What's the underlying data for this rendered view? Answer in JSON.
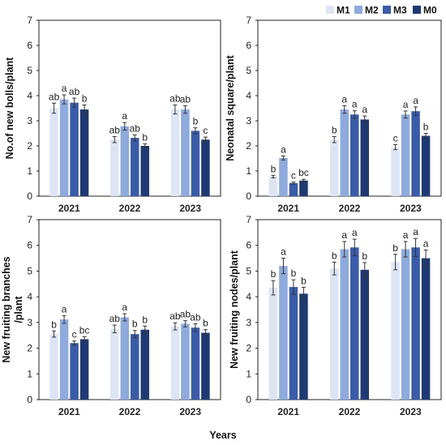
{
  "legend": [
    {
      "name": "M1",
      "color": "#dde5f4"
    },
    {
      "name": "M2",
      "color": "#8faadc"
    },
    {
      "name": "M3",
      "color": "#3a5ba8"
    },
    {
      "name": "M0",
      "color": "#1f3a73"
    }
  ],
  "x_title": "Years",
  "chart_data": [
    {
      "type": "bar",
      "ylabel": "No.of new bolls/plant",
      "ylim": [
        0,
        7
      ],
      "yticks": [
        0,
        1,
        2,
        3,
        4,
        5,
        6,
        7
      ],
      "categories": [
        "2021",
        "2022",
        "2023"
      ],
      "series": [
        {
          "name": "M1",
          "values": [
            3.5,
            2.25,
            3.45
          ],
          "errors": [
            0.2,
            0.12,
            0.18
          ],
          "labels": [
            "ab",
            "ab",
            "ab"
          ]
        },
        {
          "name": "M2",
          "values": [
            3.85,
            2.78,
            3.45
          ],
          "errors": [
            0.18,
            0.15,
            0.15
          ],
          "labels": [
            "a",
            "a",
            "ab"
          ]
        },
        {
          "name": "M3",
          "values": [
            3.72,
            2.32,
            2.6
          ],
          "errors": [
            0.18,
            0.12,
            0.12
          ],
          "labels": [
            "ab",
            "ab",
            "b"
          ]
        },
        {
          "name": "M0",
          "values": [
            3.45,
            2.0,
            2.25
          ],
          "errors": [
            0.18,
            0.08,
            0.1
          ],
          "labels": [
            "b",
            "b",
            "c"
          ]
        }
      ]
    },
    {
      "type": "bar",
      "ylabel": "Neonatal square/plant",
      "ylim": [
        0,
        7
      ],
      "yticks": [
        0,
        1,
        2,
        3,
        4,
        5,
        6,
        7
      ],
      "categories": [
        "2021",
        "2022",
        "2023"
      ],
      "series": [
        {
          "name": "M1",
          "values": [
            0.78,
            2.25,
            1.95
          ],
          "errors": [
            0.05,
            0.12,
            0.1
          ],
          "labels": [
            "b",
            "b",
            "c"
          ]
        },
        {
          "name": "M2",
          "values": [
            1.52,
            3.45,
            3.25
          ],
          "errors": [
            0.08,
            0.15,
            0.14
          ],
          "labels": [
            "a",
            "a",
            "a"
          ]
        },
        {
          "name": "M3",
          "values": [
            0.52,
            3.25,
            3.38
          ],
          "errors": [
            0.04,
            0.15,
            0.17
          ],
          "labels": [
            "c",
            "a",
            "a"
          ]
        },
        {
          "name": "M0",
          "values": [
            0.62,
            3.05,
            2.4
          ],
          "errors": [
            0.05,
            0.14,
            0.1
          ],
          "labels": [
            "bc",
            "a",
            "b"
          ]
        }
      ]
    },
    {
      "type": "bar",
      "ylabel": "New fruiting branches /plant",
      "ylabel_lines": [
        "New fruiting branches",
        "/plant"
      ],
      "ylim": [
        0,
        7
      ],
      "yticks": [
        0,
        1,
        2,
        3,
        4,
        5,
        6,
        7
      ],
      "categories": [
        "2021",
        "2022",
        "2023"
      ],
      "series": [
        {
          "name": "M1",
          "values": [
            2.55,
            2.75,
            2.85
          ],
          "errors": [
            0.12,
            0.15,
            0.14
          ],
          "labels": [
            "b",
            "ab",
            "ab"
          ]
        },
        {
          "name": "M2",
          "values": [
            3.12,
            3.2,
            2.95
          ],
          "errors": [
            0.15,
            0.14,
            0.12
          ],
          "labels": [
            "a",
            "a",
            "ab"
          ]
        },
        {
          "name": "M3",
          "values": [
            2.2,
            2.55,
            2.8
          ],
          "errors": [
            0.08,
            0.14,
            0.15
          ],
          "labels": [
            "c",
            "b",
            "ab"
          ]
        },
        {
          "name": "M0",
          "values": [
            2.35,
            2.72,
            2.6
          ],
          "errors": [
            0.1,
            0.14,
            0.12
          ],
          "labels": [
            "bc",
            "b",
            "b"
          ]
        }
      ]
    },
    {
      "type": "bar",
      "ylabel": "New fruiting nodes/plant",
      "ylim": [
        0,
        7
      ],
      "yticks": [
        0,
        1,
        2,
        3,
        4,
        5,
        6,
        7
      ],
      "categories": [
        "2021",
        "2022",
        "2023"
      ],
      "series": [
        {
          "name": "M1",
          "values": [
            4.35,
            5.1,
            5.35
          ],
          "errors": [
            0.28,
            0.25,
            0.3
          ],
          "labels": [
            "b",
            "b",
            "b"
          ]
        },
        {
          "name": "M2",
          "values": [
            5.2,
            5.85,
            5.85
          ],
          "errors": [
            0.3,
            0.3,
            0.3
          ],
          "labels": [
            "a",
            "a",
            "a"
          ]
        },
        {
          "name": "M3",
          "values": [
            4.38,
            5.92,
            5.92
          ],
          "errors": [
            0.28,
            0.32,
            0.35
          ],
          "labels": [
            "b",
            "a",
            "a"
          ]
        },
        {
          "name": "M0",
          "values": [
            4.12,
            5.05,
            5.5
          ],
          "errors": [
            0.25,
            0.28,
            0.32
          ],
          "labels": [
            "b",
            "b",
            "a"
          ]
        }
      ]
    }
  ]
}
